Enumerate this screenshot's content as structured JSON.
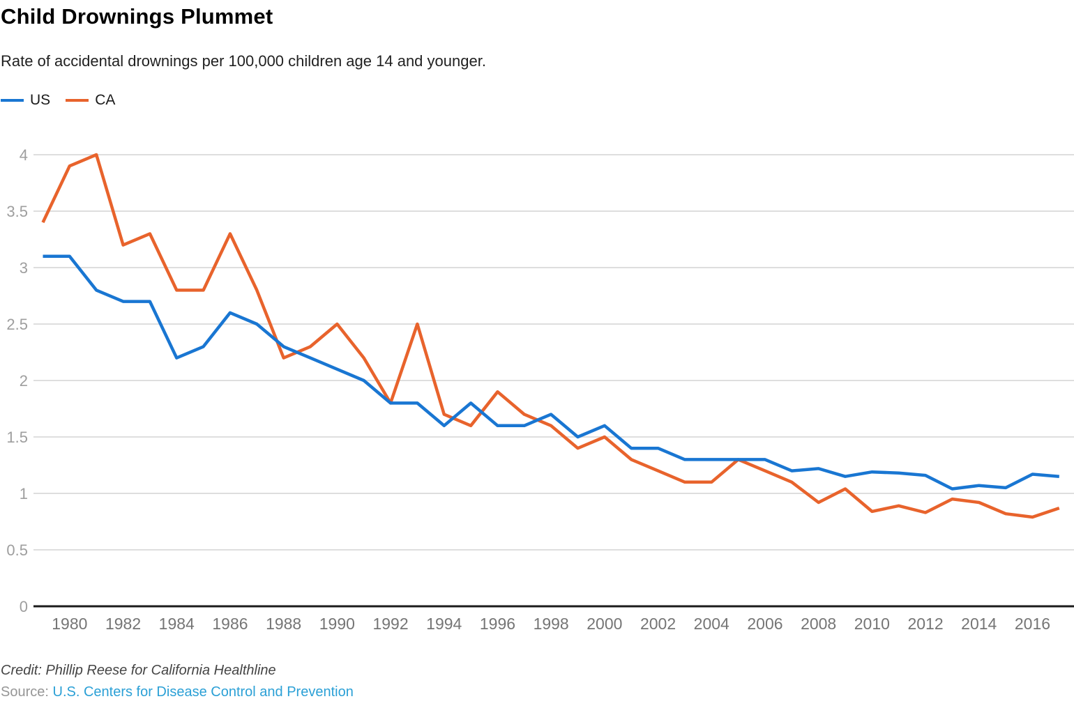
{
  "chart_data": {
    "type": "line",
    "title": "Child Drownings Plummet",
    "subtitle": "Rate of accidental drownings per 100,000 children age 14 and younger.",
    "xlabel": "",
    "ylabel": "",
    "ylim": [
      0,
      4
    ],
    "grid": true,
    "legend_position": "top-left",
    "x": [
      1979,
      1980,
      1981,
      1982,
      1983,
      1984,
      1985,
      1986,
      1987,
      1988,
      1989,
      1990,
      1991,
      1992,
      1993,
      1994,
      1995,
      1996,
      1997,
      1998,
      1999,
      2000,
      2001,
      2002,
      2003,
      2004,
      2005,
      2006,
      2007,
      2008,
      2009,
      2010,
      2011,
      2012,
      2013,
      2014,
      2015,
      2016,
      2017
    ],
    "series": [
      {
        "name": "US",
        "color": "#1976d2",
        "values": [
          3.1,
          3.1,
          2.8,
          2.7,
          2.7,
          2.2,
          2.3,
          2.6,
          2.5,
          2.3,
          2.2,
          2.1,
          2.0,
          1.8,
          1.8,
          1.6,
          1.8,
          1.6,
          1.6,
          1.7,
          1.5,
          1.6,
          1.4,
          1.4,
          1.3,
          1.3,
          1.3,
          1.3,
          1.2,
          1.22,
          1.15,
          1.19,
          1.18,
          1.16,
          1.04,
          1.07,
          1.05,
          1.17,
          1.15
        ]
      },
      {
        "name": "CA",
        "color": "#e8632c",
        "values": [
          3.4,
          3.9,
          4.0,
          3.2,
          3.3,
          2.8,
          2.8,
          3.3,
          2.8,
          2.2,
          2.3,
          2.5,
          2.2,
          1.8,
          2.5,
          1.7,
          1.6,
          1.9,
          1.7,
          1.6,
          1.4,
          1.5,
          1.3,
          1.2,
          1.1,
          1.1,
          1.3,
          1.2,
          1.1,
          0.92,
          1.04,
          0.84,
          0.89,
          0.83,
          0.95,
          0.92,
          0.82,
          0.79,
          0.87
        ]
      }
    ],
    "yticks": [
      0,
      0.5,
      1,
      1.5,
      2,
      2.5,
      3,
      3.5,
      4
    ],
    "xticks": [
      1980,
      1982,
      1984,
      1986,
      1988,
      1990,
      1992,
      1994,
      1996,
      1998,
      2000,
      2002,
      2004,
      2006,
      2008,
      2010,
      2012,
      2014,
      2016
    ],
    "colors": {
      "gridline": "#dedede",
      "baseline": "#1b1b1b",
      "y_tick_label": "#9e9e9e",
      "x_tick_label": "#757575"
    }
  },
  "footer": {
    "credit": "Credit: Phillip Reese for California Healthline",
    "source_prefix": "Source:",
    "source_link": "U.S. Centers for Disease Control and Prevention",
    "source_link_color": "#2ba0d6"
  }
}
